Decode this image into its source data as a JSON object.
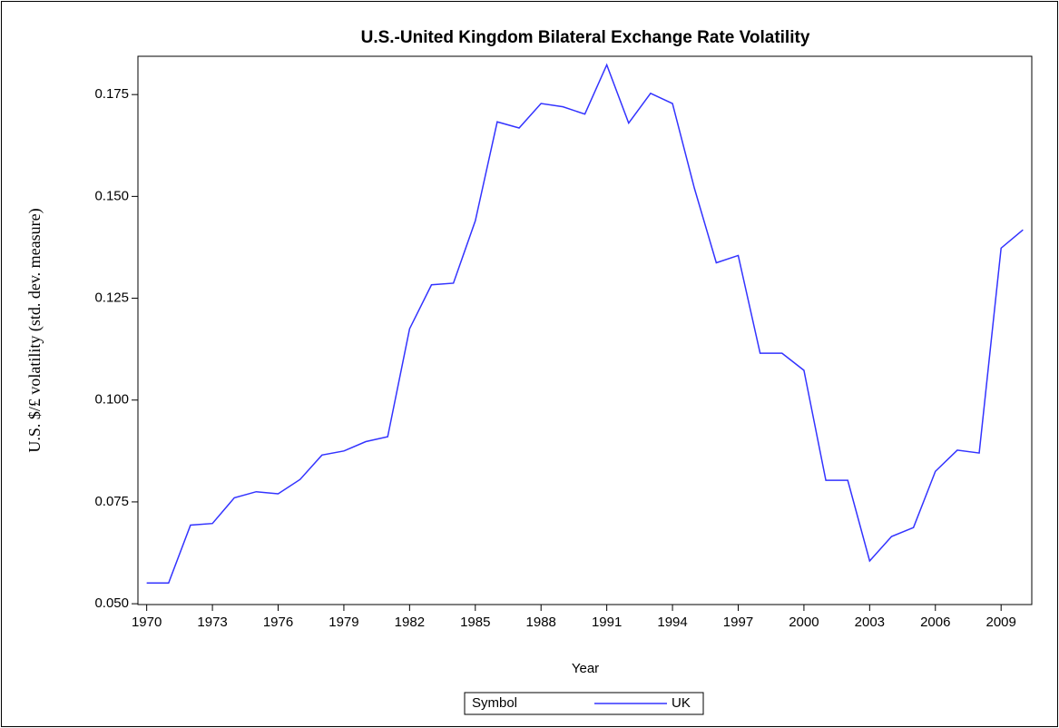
{
  "chart_data": {
    "type": "line",
    "title": "U.S.-United Kingdom Bilateral  Exchange Rate Volatility",
    "x_label": "Year",
    "y_label": "U.S. $/£ volatility (std. dev. measure)",
    "legend_title": "Symbol",
    "x": [
      1970,
      1971,
      1972,
      1973,
      1974,
      1975,
      1976,
      1977,
      1978,
      1979,
      1980,
      1981,
      1982,
      1983,
      1984,
      1985,
      1986,
      1987,
      1988,
      1989,
      1990,
      1991,
      1992,
      1993,
      1994,
      1995,
      1996,
      1997,
      1998,
      1999,
      2000,
      2001,
      2002,
      2003,
      2004,
      2005,
      2006,
      2007,
      2008,
      2009,
      2010
    ],
    "series": [
      {
        "name": "UK",
        "color": "#3333ff",
        "values": [
          0.0551,
          0.0551,
          0.0693,
          0.0697,
          0.076,
          0.0775,
          0.077,
          0.0805,
          0.0865,
          0.0875,
          0.0898,
          0.091,
          0.1175,
          0.1283,
          0.1287,
          0.144,
          0.1683,
          0.1668,
          0.1728,
          0.172,
          0.1702,
          0.1823,
          0.168,
          0.1753,
          0.1728,
          0.152,
          0.1337,
          0.1355,
          0.1115,
          0.1115,
          0.1073,
          0.0803,
          0.0803,
          0.0605,
          0.0665,
          0.0687,
          0.0825,
          0.0877,
          0.087,
          0.1373,
          0.1418
        ]
      }
    ],
    "xlim": [
      1969.6,
      2010.4
    ],
    "xticks": [
      1970,
      1973,
      1976,
      1979,
      1982,
      1985,
      1988,
      1991,
      1994,
      1997,
      2000,
      2003,
      2006,
      2009
    ],
    "ylim": [
      0.0498,
      0.1844
    ],
    "yticks": [
      {
        "value": 0.05,
        "label": "0.050"
      },
      {
        "value": 0.075,
        "label": "0.075"
      },
      {
        "value": 0.1,
        "label": "0.100"
      },
      {
        "value": 0.125,
        "label": "0.125"
      },
      {
        "value": 0.15,
        "label": "0.150"
      },
      {
        "value": 0.175,
        "label": "0.175"
      }
    ],
    "legend_position": "bottom"
  }
}
